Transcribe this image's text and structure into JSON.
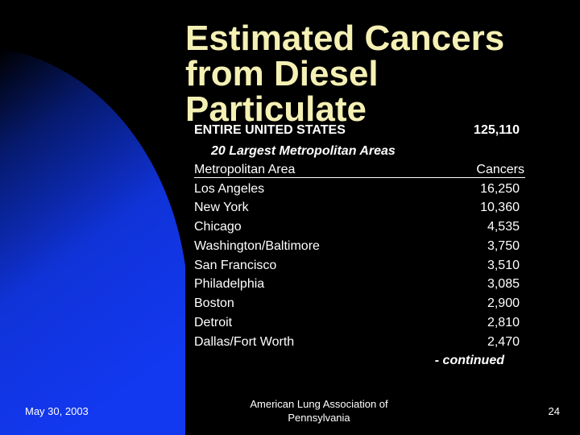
{
  "slide": {
    "title_lines": [
      "Estimated Cancers",
      "from Diesel",
      "Particulate"
    ],
    "total_label": "ENTIRE UNITED STATES",
    "total_value": "125,110",
    "subtitle": "20 Largest Metropolitan Areas",
    "table": {
      "headers": [
        "Metropolitan Area",
        "Cancers"
      ],
      "rows": [
        [
          "Los Angeles",
          "16,250"
        ],
        [
          "New York",
          "10,360"
        ],
        [
          "Chicago",
          "4,535"
        ],
        [
          "Washington/Baltimore",
          "3,750"
        ],
        [
          "San Francisco",
          "3,510"
        ],
        [
          "Philadelphia",
          "3,085"
        ],
        [
          "Boston",
          "2,900"
        ],
        [
          "Detroit",
          "2,810"
        ],
        [
          "Dallas/Fort Worth",
          "2,470"
        ]
      ]
    },
    "continued_note": "- continued"
  },
  "footer": {
    "date": "May 30, 2003",
    "org_lines": [
      "American Lung Association of",
      "Pennsylvania"
    ],
    "page_number": "24"
  },
  "colors": {
    "background": "#000000",
    "gradient_blue": "#1033d8",
    "title_color": "#f5f0b4",
    "text_color": "#ffffff"
  }
}
